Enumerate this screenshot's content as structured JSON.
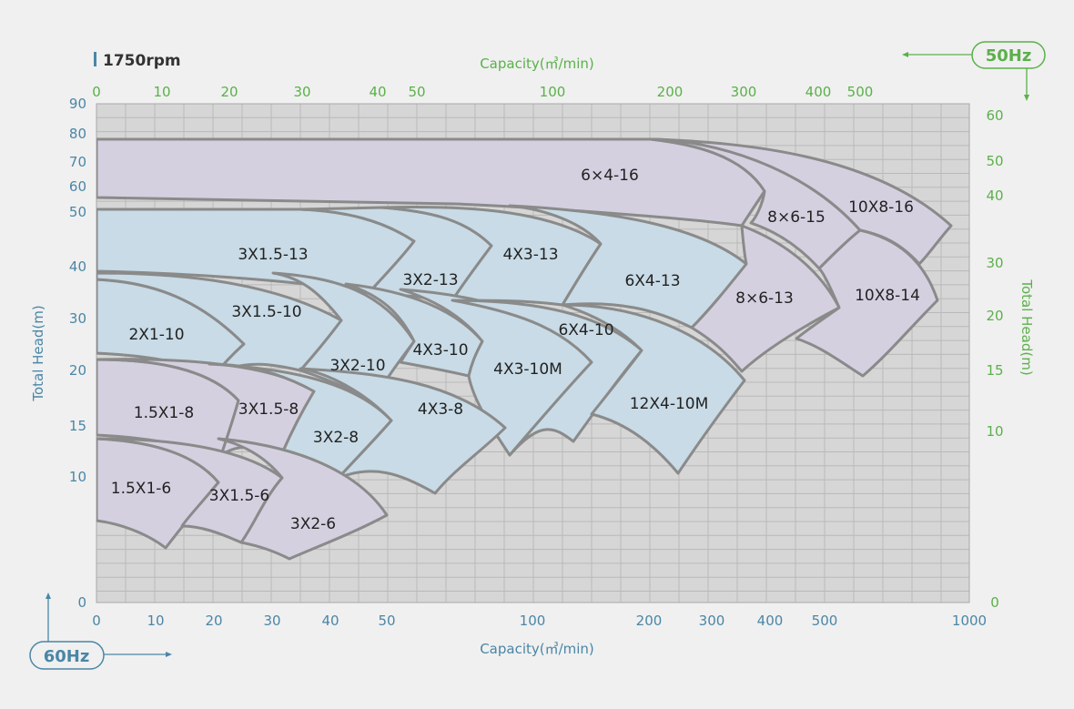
{
  "header": {
    "speed_label": "1750rpm"
  },
  "badges": {
    "hz60": "60Hz",
    "hz50": "50Hz"
  },
  "colors": {
    "axis60": "#4a86a6",
    "axis50": "#5bb04a",
    "grid": "#b8b8b8",
    "plot_bg": "#d6d6d6",
    "region_purple": "#d5d0e0",
    "region_blue": "#c8dbe6",
    "outline": "#8a8a8a"
  },
  "chart_data": {
    "type": "area",
    "title": "1750rpm",
    "x_axis_60hz": {
      "label": "Capacity(㎥/min)",
      "scale": "log",
      "ticks": [
        "0",
        "10",
        "20",
        "30",
        "40",
        "50",
        "100",
        "200",
        "300",
        "400",
        "500",
        "1000"
      ]
    },
    "x_axis_50hz": {
      "label": "Capacity(㎥/min)",
      "ticks": [
        "0",
        "10",
        "20",
        "30",
        "40",
        "50",
        "100",
        "200",
        "300",
        "400",
        "500"
      ]
    },
    "y_axis_60hz": {
      "label": "Total Head(m)",
      "ticks": [
        "0",
        "10",
        "15",
        "20",
        "30",
        "40",
        "50",
        "60",
        "70",
        "80",
        "90"
      ]
    },
    "y_axis_50hz": {
      "label": "Total Head(m)",
      "ticks": [
        "0",
        "10",
        "15",
        "20",
        "30",
        "40",
        "50",
        "60"
      ]
    },
    "grid": true,
    "pump_models": [
      {
        "label": "6×4-16",
        "color": "purple",
        "q": [
          0,
          260
        ],
        "head": [
          55,
          78
        ]
      },
      {
        "label": "8×6-15",
        "color": "purple",
        "q": [
          200,
          350
        ],
        "head": [
          43,
          78
        ]
      },
      {
        "label": "10X8-16",
        "color": "purple",
        "q": [
          250,
          800
        ],
        "head": [
          42,
          78
        ]
      },
      {
        "label": "3X1.5-13",
        "color": "blue",
        "q": [
          0,
          40
        ],
        "head": [
          38,
          52
        ]
      },
      {
        "label": "3X2-13",
        "color": "blue",
        "q": [
          40,
          60
        ],
        "head": [
          36,
          55
        ]
      },
      {
        "label": "4X3-13",
        "color": "blue",
        "q": [
          60,
          110
        ],
        "head": [
          35,
          54
        ]
      },
      {
        "label": "6X4-13",
        "color": "blue",
        "q": [
          110,
          210
        ],
        "head": [
          30,
          52
        ]
      },
      {
        "label": "8×6-13",
        "color": "purple",
        "q": [
          210,
          380
        ],
        "head": [
          21,
          48
        ]
      },
      {
        "label": "10X8-14",
        "color": "purple",
        "q": [
          350,
          800
        ],
        "head": [
          19,
          45
        ]
      },
      {
        "label": "2X1-10",
        "color": "blue",
        "q": [
          0,
          20
        ],
        "head": [
          24,
          37
        ]
      },
      {
        "label": "3X1.5-10",
        "color": "blue",
        "q": [
          20,
          35
        ],
        "head": [
          23,
          39
        ]
      },
      {
        "label": "3X2-10",
        "color": "blue",
        "q": [
          35,
          50
        ],
        "head": [
          21,
          37
        ]
      },
      {
        "label": "4X3-10",
        "color": "blue",
        "q": [
          50,
          60
        ],
        "head": [
          21,
          35
        ]
      },
      {
        "label": "4X3-10M",
        "color": "blue",
        "q": [
          60,
          110
        ],
        "head": [
          16,
          35
        ]
      },
      {
        "label": "6X4-10",
        "color": "blue",
        "q": [
          100,
          160
        ],
        "head": [
          15,
          35
        ]
      },
      {
        "label": "12X4-10M",
        "color": "blue",
        "q": [
          120,
          270
        ],
        "head": [
          10,
          33
        ]
      },
      {
        "label": "1.5X1-8",
        "color": "purple",
        "q": [
          0,
          20
        ],
        "head": [
          17,
          24
        ]
      },
      {
        "label": "3X1.5-8",
        "color": "purple",
        "q": [
          20,
          35
        ],
        "head": [
          16,
          24
        ]
      },
      {
        "label": "3X2-8",
        "color": "blue",
        "q": [
          30,
          50
        ],
        "head": [
          13,
          22
        ]
      },
      {
        "label": "4X3-8",
        "color": "blue",
        "q": [
          45,
          90
        ],
        "head": [
          11,
          22
        ]
      },
      {
        "label": "1.5X1-6",
        "color": "purple",
        "q": [
          0,
          15
        ],
        "head": [
          5,
          14
        ]
      },
      {
        "label": "3X1.5-6",
        "color": "purple",
        "q": [
          15,
          25
        ],
        "head": [
          5,
          12
        ]
      },
      {
        "label": "3X2-6",
        "color": "purple",
        "q": [
          25,
          50
        ],
        "head": [
          5,
          12
        ]
      }
    ]
  }
}
